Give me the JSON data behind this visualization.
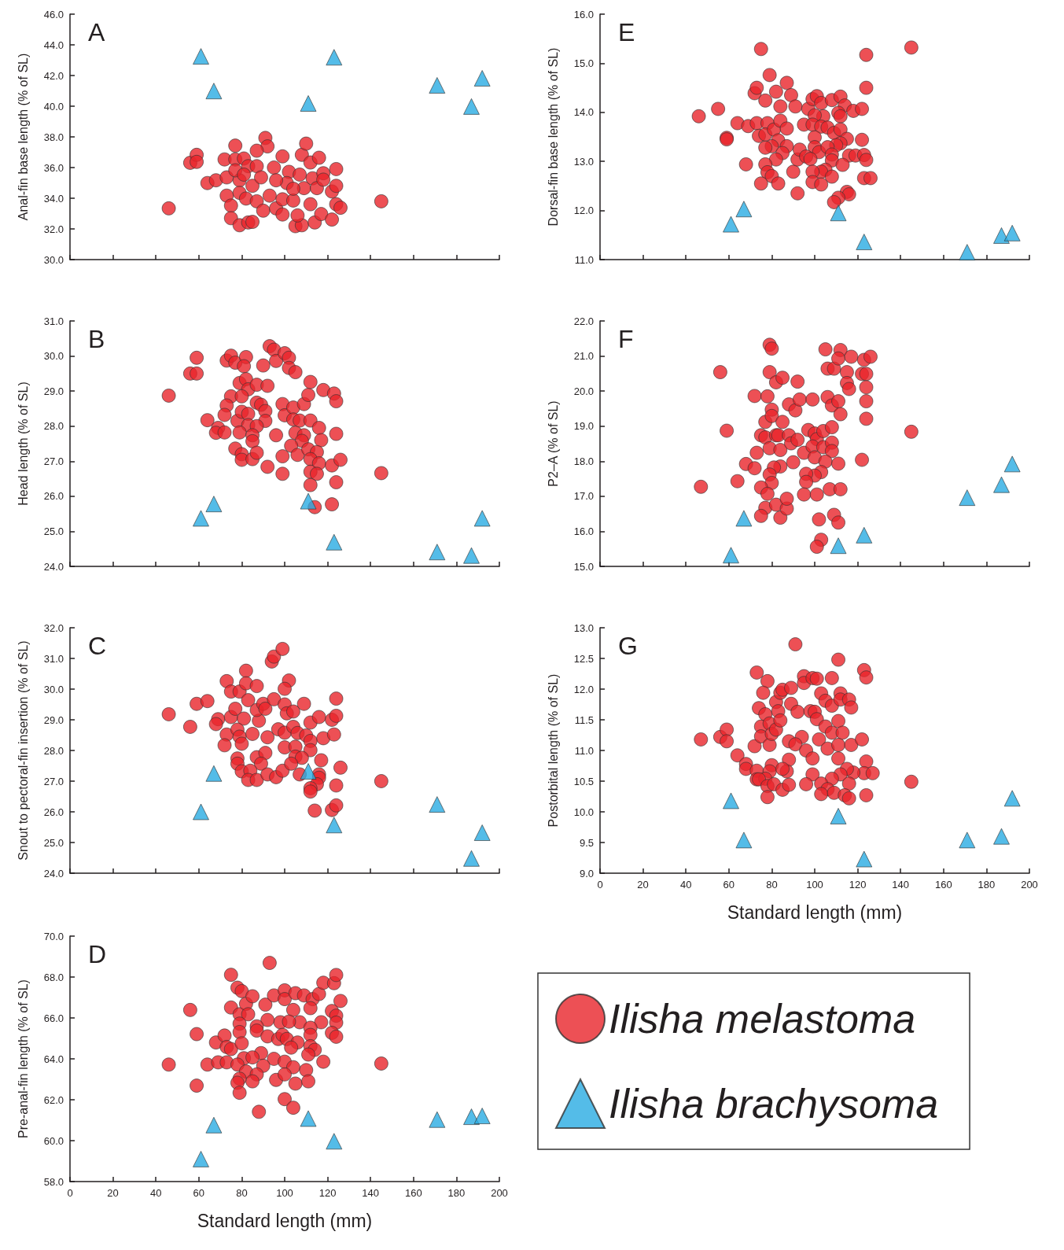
{
  "chart_data": [
    {
      "type": "scatter",
      "title": "A",
      "ylabel": "Anal-fin base length (% of SL)",
      "xlim": [
        0,
        200
      ],
      "xticks": [
        0,
        20,
        40,
        60,
        80,
        100,
        120,
        140,
        160,
        180,
        200
      ],
      "ylim": [
        30,
        46
      ],
      "yticks": [
        {
          "value": 30,
          "label": "30.0"
        },
        {
          "value": 32,
          "label": "32.0"
        },
        {
          "value": 34,
          "label": "34.0"
        },
        {
          "value": 36,
          "label": "36.0"
        },
        {
          "value": 38,
          "label": "38.0"
        },
        {
          "value": 40,
          "label": "40.0"
        },
        {
          "value": 42,
          "label": "42.0"
        },
        {
          "value": 44,
          "label": "44.0"
        },
        {
          "value": 46,
          "label": "46.0"
        }
      ],
      "tick_labels": "y",
      "series": [
        {
          "color": "#e8242b",
          "marker": "circle",
          "x": [
            46,
            56,
            59,
            59,
            64,
            68,
            72,
            77,
            77,
            81,
            73,
            73,
            75,
            75,
            79,
            83,
            85,
            79,
            79,
            82,
            83,
            87,
            85,
            87,
            90,
            89,
            91,
            92,
            87,
            95,
            93,
            96,
            99,
            99,
            99,
            102,
            101,
            104,
            105,
            108,
            106,
            108,
            110,
            112,
            109,
            112,
            113,
            116,
            115,
            114,
            117,
            118,
            118,
            122,
            122,
            124,
            124,
            124,
            126,
            145,
            77,
            81,
            96,
            107,
            104
          ],
          "values": [
            33.34,
            36.31,
            36.83,
            36.37,
            34.99,
            35.17,
            36.53,
            37.43,
            36.53,
            36.59,
            35.36,
            34.17,
            33.52,
            32.7,
            32.24,
            32.42,
            32.46,
            35.17,
            34.35,
            33.98,
            36.09,
            36.09,
            34.81,
            33.8,
            33.19,
            35.36,
            37.93,
            37.38,
            37.1,
            36.0,
            34.17,
            33.34,
            36.73,
            33.93,
            32.94,
            35.72,
            34.99,
            33.85,
            32.18,
            32.24,
            32.88,
            36.83,
            37.56,
            36.33,
            34.66,
            33.61,
            35.3,
            36.64,
            34.66,
            32.42,
            32.97,
            35.63,
            35.21,
            34.44,
            32.61,
            35.9,
            34.81,
            33.61,
            33.38,
            33.8,
            35.82,
            35.54,
            35.17,
            35.54,
            34.62
          ]
        },
        {
          "color": "#29abe2",
          "marker": "triangle",
          "x": [
            61,
            67,
            111,
            123,
            171,
            187,
            192
          ],
          "values": [
            43.25,
            40.99,
            40.18,
            43.19,
            41.36,
            39.98,
            41.82
          ]
        }
      ]
    },
    {
      "type": "scatter",
      "title": "B",
      "ylabel": "Head length (% of SL)",
      "xlim": [
        0,
        200
      ],
      "xticks": [
        0,
        20,
        40,
        60,
        80,
        100,
        120,
        140,
        160,
        180,
        200
      ],
      "ylim": [
        24,
        31
      ],
      "yticks": [
        {
          "value": 24,
          "label": "24.0"
        },
        {
          "value": 25,
          "label": "25.0"
        },
        {
          "value": 26,
          "label": "26.0"
        },
        {
          "value": 27,
          "label": "27.0"
        },
        {
          "value": 28,
          "label": "28.0"
        },
        {
          "value": 29,
          "label": "29.0"
        },
        {
          "value": 30,
          "label": "30.0"
        },
        {
          "value": 31,
          "label": "31.0"
        }
      ],
      "tick_labels": "y",
      "series": [
        {
          "color": "#e8242b",
          "marker": "circle",
          "x": [
            46,
            56,
            59,
            59,
            64,
            69,
            68,
            72,
            73,
            75,
            77,
            82,
            81,
            90,
            93,
            95,
            96,
            100,
            102,
            102,
            105,
            79,
            82,
            83,
            87,
            92,
            75,
            80,
            73,
            72,
            78,
            80,
            83,
            87,
            89,
            91,
            91,
            83,
            87,
            79,
            85,
            85,
            96,
            99,
            100,
            104,
            109,
            111,
            112,
            118,
            123,
            124,
            104,
            107,
            112,
            116,
            105,
            109,
            108,
            117,
            124,
            77,
            80,
            80,
            85,
            87,
            103,
            106,
            111,
            115,
            99,
            92,
            99,
            112,
            116,
            122,
            126,
            112,
            115,
            124,
            112,
            114,
            122,
            145
          ],
          "values": [
            28.87,
            29.5,
            29.5,
            29.95,
            28.17,
            27.95,
            27.81,
            27.82,
            29.87,
            30.01,
            29.81,
            29.97,
            29.71,
            29.73,
            30.28,
            30.18,
            29.86,
            30.08,
            29.95,
            29.66,
            29.54,
            29.23,
            29.34,
            29.05,
            29.18,
            29.15,
            28.85,
            28.85,
            28.59,
            28.32,
            28.15,
            28.41,
            28.35,
            28.67,
            28.61,
            28.43,
            28.15,
            28.03,
            28.0,
            27.82,
            27.74,
            27.57,
            27.74,
            28.63,
            28.31,
            28.53,
            28.63,
            28.89,
            29.26,
            29.03,
            28.93,
            28.71,
            28.19,
            28.16,
            28.16,
            27.95,
            27.81,
            27.74,
            27.58,
            27.6,
            27.78,
            27.36,
            27.2,
            27.04,
            27.06,
            27.24,
            27.44,
            27.18,
            27.34,
            27.26,
            27.14,
            26.84,
            26.64,
            27.06,
            26.94,
            26.88,
            27.04,
            26.7,
            26.64,
            26.4,
            26.32,
            25.69,
            25.77,
            26.66
          ]
        },
        {
          "color": "#29abe2",
          "marker": "triangle",
          "x": [
            61,
            67,
            111,
            123,
            171,
            187,
            192
          ],
          "values": [
            25.37,
            25.78,
            25.86,
            24.69,
            24.41,
            24.31,
            25.37
          ]
        }
      ]
    },
    {
      "type": "scatter",
      "title": "C",
      "ylabel": "Snout to pectoral-fin insertion (% of SL)",
      "xlim": [
        0,
        200
      ],
      "xticks": [
        0,
        20,
        40,
        60,
        80,
        100,
        120,
        140,
        160,
        180,
        200
      ],
      "ylim": [
        24,
        32
      ],
      "yticks": [
        {
          "value": 24,
          "label": "24.0"
        },
        {
          "value": 25,
          "label": "25.0"
        },
        {
          "value": 26,
          "label": "26.0"
        },
        {
          "value": 27,
          "label": "27.0"
        },
        {
          "value": 28,
          "label": "28.0"
        },
        {
          "value": 29,
          "label": "29.0"
        },
        {
          "value": 30,
          "label": "30.0"
        },
        {
          "value": 31,
          "label": "31.0"
        },
        {
          "value": 32,
          "label": "32.0"
        }
      ],
      "tick_labels": "y",
      "series": [
        {
          "color": "#e8242b",
          "marker": "circle",
          "x": [
            46,
            56,
            59,
            64,
            69,
            68,
            73,
            72,
            73,
            75,
            75,
            77,
            79,
            82,
            82,
            87,
            83,
            81,
            78,
            79,
            80,
            85,
            88,
            87,
            90,
            91,
            94,
            95,
            99,
            102,
            100,
            95,
            100,
            101,
            104,
            109,
            92,
            97,
            100,
            104,
            106,
            110,
            112,
            116,
            112,
            118,
            123,
            122,
            124,
            124,
            100,
            105,
            112,
            105,
            108,
            117,
            78,
            78,
            87,
            91,
            89,
            80,
            84,
            83,
            87,
            92,
            96,
            99,
            103,
            107,
            116,
            116,
            126,
            115,
            112,
            112,
            124,
            114,
            122,
            124,
            145
          ],
          "values": [
            29.18,
            28.77,
            29.52,
            29.61,
            29.02,
            28.86,
            28.52,
            28.17,
            30.26,
            29.92,
            29.09,
            29.36,
            29.92,
            30.6,
            30.19,
            30.1,
            29.64,
            29.04,
            28.68,
            28.45,
            28.22,
            28.54,
            28.97,
            29.32,
            29.52,
            29.36,
            30.9,
            31.06,
            31.31,
            30.28,
            30.01,
            29.67,
            29.5,
            29.21,
            29.27,
            29.52,
            28.43,
            28.69,
            28.58,
            28.77,
            28.57,
            28.49,
            28.91,
            29.09,
            28.31,
            28.4,
            28.52,
            29.0,
            29.69,
            29.13,
            28.1,
            28.12,
            28.01,
            27.8,
            27.76,
            27.68,
            27.74,
            27.57,
            27.78,
            27.92,
            27.57,
            27.32,
            27.34,
            27.04,
            27.04,
            27.22,
            27.13,
            27.34,
            27.57,
            27.22,
            27.22,
            27.11,
            27.44,
            26.9,
            26.77,
            26.66,
            26.86,
            26.04,
            26.06,
            26.21,
            27.0
          ]
        },
        {
          "color": "#29abe2",
          "marker": "triangle",
          "x": [
            61,
            67,
            111,
            123,
            171,
            187,
            192
          ],
          "values": [
            26.0,
            27.25,
            27.32,
            25.57,
            26.24,
            24.48,
            25.32
          ]
        }
      ]
    },
    {
      "type": "scatter",
      "title": "D",
      "ylabel": "Pre-anal-fin length (% of SL)",
      "xlabel": "Standard length (mm)",
      "xlim": [
        0,
        200
      ],
      "xticks": [
        0,
        20,
        40,
        60,
        80,
        100,
        120,
        140,
        160,
        180,
        200
      ],
      "ylim": [
        58,
        70
      ],
      "yticks": [
        {
          "value": 58,
          "label": "58.0"
        },
        {
          "value": 60,
          "label": "60.0"
        },
        {
          "value": 62,
          "label": "62.0"
        },
        {
          "value": 64,
          "label": "64.0"
        },
        {
          "value": 66,
          "label": "66.0"
        },
        {
          "value": 68,
          "label": "68.0"
        },
        {
          "value": 70,
          "label": "70.0"
        }
      ],
      "legend": "right",
      "series": [
        {
          "name": "Ilisha melastoma",
          "color": "#e8242b",
          "marker": "circle",
          "x": [
            46,
            56,
            59,
            59,
            64,
            69,
            68,
            72,
            73,
            73,
            75,
            75,
            78,
            80,
            75,
            79,
            82,
            83,
            85,
            91,
            95,
            93,
            100,
            100,
            105,
            109,
            113,
            116,
            118,
            123,
            124,
            126,
            104,
            112,
            122,
            124,
            124,
            122,
            124,
            117,
            107,
            112,
            112,
            98,
            102,
            92,
            87,
            87,
            79,
            79,
            80,
            92,
            97,
            99,
            101,
            106,
            103,
            112,
            114,
            111,
            89,
            81,
            85,
            78,
            95,
            100,
            104,
            90,
            118,
            82,
            87,
            85,
            79,
            78,
            79,
            96,
            100,
            110,
            105,
            111,
            100,
            104,
            88,
            145
          ],
          "values": [
            63.72,
            66.39,
            65.21,
            62.69,
            63.72,
            63.83,
            64.8,
            65.14,
            63.83,
            64.58,
            64.48,
            68.11,
            67.48,
            67.31,
            66.51,
            66.18,
            66.69,
            66.18,
            67.06,
            66.65,
            67.1,
            68.69,
            67.35,
            66.92,
            67.21,
            67.1,
            66.92,
            67.17,
            67.72,
            67.7,
            68.1,
            66.83,
            66.39,
            66.48,
            66.34,
            66.11,
            65.77,
            65.27,
            65.08,
            65.79,
            65.79,
            65.52,
            65.17,
            65.79,
            65.82,
            65.9,
            65.59,
            65.38,
            65.72,
            65.31,
            64.76,
            65.1,
            64.97,
            65.17,
            64.97,
            64.8,
            64.55,
            64.62,
            64.44,
            64.21,
            64.28,
            64.03,
            64.07,
            63.72,
            64.0,
            63.86,
            63.59,
            63.66,
            63.86,
            63.38,
            63.24,
            62.9,
            63.03,
            62.83,
            62.34,
            62.97,
            63.24,
            63.45,
            62.79,
            62.9,
            62.03,
            61.61,
            61.41,
            63.77
          ]
        },
        {
          "name": "Ilisha brachysoma",
          "color": "#29abe2",
          "marker": "triangle",
          "x": [
            61,
            67,
            111,
            123,
            171,
            187,
            192
          ],
          "values": [
            59.1,
            60.76,
            61.08,
            59.97,
            61.03,
            61.17,
            61.21
          ]
        }
      ]
    },
    {
      "type": "scatter",
      "title": "E",
      "ylabel": "Dorsal-fin base length (% of SL)",
      "xlim": [
        0,
        200
      ],
      "xticks": [
        0,
        20,
        40,
        60,
        80,
        100,
        120,
        140,
        160,
        180,
        200
      ],
      "ylim": [
        11,
        16
      ],
      "yticks": [
        {
          "value": 11,
          "label": "11.0"
        },
        {
          "value": 12,
          "label": "12.0"
        },
        {
          "value": 13,
          "label": "13.0"
        },
        {
          "value": 14,
          "label": "14.0"
        },
        {
          "value": 15,
          "label": "15.0"
        },
        {
          "value": 16,
          "label": "16.0"
        }
      ],
      "tick_labels": "y",
      "series": [
        {
          "color": "#e8242b",
          "marker": "circle",
          "x": [
            46,
            55,
            59,
            59,
            68,
            64,
            69,
            73,
            72,
            73,
            75,
            77,
            79,
            82,
            87,
            78,
            74,
            77,
            81,
            84,
            84,
            87,
            89,
            91,
            83,
            87,
            80,
            77,
            85,
            82,
            77,
            78,
            80,
            75,
            83,
            90,
            92,
            93,
            95,
            97,
            99,
            101,
            103,
            108,
            112,
            114,
            118,
            122,
            111,
            112,
            104,
            100,
            99,
            103,
            106,
            109,
            112,
            100,
            115,
            122,
            112,
            110,
            100,
            102,
            106,
            108,
            96,
            98,
            108,
            116,
            119,
            123,
            124,
            113,
            105,
            103,
            99,
            108,
            99,
            103,
            123,
            126,
            92,
            115,
            116,
            111,
            109,
            124,
            124,
            145
          ],
          "values": [
            13.92,
            14.07,
            13.48,
            13.45,
            12.94,
            13.78,
            13.72,
            13.78,
            14.39,
            14.5,
            15.29,
            14.24,
            14.76,
            14.42,
            14.6,
            13.78,
            13.52,
            13.55,
            13.65,
            14.12,
            13.83,
            13.67,
            14.35,
            14.12,
            13.43,
            13.31,
            13.31,
            13.28,
            13.17,
            13.04,
            12.94,
            12.78,
            12.7,
            12.55,
            12.55,
            12.79,
            13.04,
            13.24,
            13.75,
            14.07,
            14.27,
            14.33,
            14.19,
            14.25,
            14.32,
            14.14,
            14.03,
            14.07,
            13.99,
            13.92,
            13.92,
            13.94,
            13.75,
            13.71,
            13.69,
            13.58,
            13.65,
            13.49,
            13.46,
            13.44,
            13.37,
            13.33,
            13.29,
            13.19,
            13.29,
            13.14,
            13.1,
            13.05,
            13.02,
            13.12,
            13.12,
            13.13,
            13.03,
            12.93,
            12.83,
            12.79,
            12.79,
            12.69,
            12.58,
            12.53,
            12.66,
            12.66,
            12.35,
            12.38,
            12.33,
            12.26,
            12.17,
            14.5,
            15.17,
            15.32
          ]
        },
        {
          "color": "#29abe2",
          "marker": "triangle",
          "x": [
            61,
            67,
            111,
            123,
            171,
            187,
            192
          ],
          "values": [
            11.72,
            12.03,
            11.95,
            11.36,
            11.15,
            11.49,
            11.54
          ]
        }
      ]
    },
    {
      "type": "scatter",
      "title": "F",
      "ylabel": "P2–A (% of SL)",
      "xlim": [
        0,
        200
      ],
      "xticks": [
        0,
        20,
        40,
        60,
        80,
        100,
        120,
        140,
        160,
        180,
        200
      ],
      "ylim": [
        15,
        22
      ],
      "yticks": [
        {
          "value": 15,
          "label": "15.0"
        },
        {
          "value": 16,
          "label": "16.0"
        },
        {
          "value": 17,
          "label": "17.0"
        },
        {
          "value": 18,
          "label": "18.0"
        },
        {
          "value": 19,
          "label": "19.0"
        },
        {
          "value": 20,
          "label": "20.0"
        },
        {
          "value": 21,
          "label": "21.0"
        },
        {
          "value": 22,
          "label": "22.0"
        }
      ],
      "tick_labels": "y",
      "series": [
        {
          "color": "#e8242b",
          "marker": "circle",
          "x": [
            47,
            56,
            59,
            64,
            68,
            72,
            72,
            73,
            75,
            77,
            77,
            78,
            79,
            80,
            79,
            82,
            85,
            80,
            80,
            85,
            79,
            82,
            83,
            84,
            88,
            91,
            92,
            93,
            99,
            88,
            89,
            92,
            90,
            84,
            81,
            79,
            80,
            75,
            78,
            77,
            75,
            82,
            84,
            87,
            87,
            95,
            97,
            100,
            101,
            99,
            100,
            104,
            104,
            108,
            108,
            108,
            105,
            103,
            100,
            96,
            96,
            95,
            101,
            107,
            112,
            111,
            122,
            109,
            111,
            102,
            103,
            101,
            106,
            108,
            111,
            112,
            106,
            109,
            115,
            115,
            116,
            105,
            112,
            111,
            117,
            123,
            126,
            122,
            124,
            124,
            124,
            124,
            145
          ],
          "values": [
            17.27,
            20.54,
            18.87,
            17.43,
            17.92,
            17.8,
            19.86,
            18.24,
            18.74,
            18.68,
            19.12,
            19.85,
            21.32,
            21.21,
            20.54,
            20.25,
            20.38,
            19.47,
            19.29,
            19.12,
            18.37,
            18.74,
            18.74,
            18.32,
            19.62,
            19.45,
            20.27,
            19.76,
            19.76,
            18.74,
            18.51,
            18.61,
            17.97,
            17.85,
            17.82,
            17.62,
            17.38,
            17.25,
            17.07,
            16.67,
            16.44,
            16.76,
            16.39,
            16.65,
            16.93,
            18.24,
            18.89,
            18.79,
            18.63,
            18.42,
            18.11,
            18.86,
            18.4,
            18.97,
            18.53,
            18.29,
            17.99,
            17.69,
            17.59,
            17.64,
            17.41,
            17.05,
            17.05,
            17.2,
            17.2,
            17.93,
            18.04,
            16.47,
            16.25,
            16.34,
            15.76,
            15.56,
            19.83,
            19.59,
            19.71,
            19.34,
            20.64,
            20.64,
            20.54,
            20.23,
            20.06,
            21.19,
            21.17,
            20.93,
            20.98,
            20.89,
            20.98,
            20.49,
            20.49,
            20.11,
            19.71,
            19.21,
            18.84
          ]
        },
        {
          "color": "#29abe2",
          "marker": "triangle",
          "x": [
            61,
            67,
            111,
            123,
            171,
            187,
            192
          ],
          "values": [
            15.32,
            16.37,
            15.59,
            15.89,
            16.96,
            17.33,
            17.92
          ]
        }
      ]
    },
    {
      "type": "scatter",
      "title": "G",
      "ylabel": "Postorbital length (% of SL)",
      "xlabel": "Standard length (mm)",
      "xlim": [
        0,
        200
      ],
      "xticks": [
        0,
        20,
        40,
        60,
        80,
        100,
        120,
        140,
        160,
        180,
        200
      ],
      "ylim": [
        9,
        13
      ],
      "yticks": [
        {
          "value": 9,
          "label": "9.0"
        },
        9.5,
        {
          "value": 10,
          "label": "10.0"
        },
        10.5,
        {
          "value": 11,
          "label": "11.0"
        },
        11.5,
        {
          "value": 12,
          "label": "12.0"
        },
        12.5,
        {
          "value": 13,
          "label": "13.0"
        }
      ],
      "series": [
        {
          "color": "#e8242b",
          "marker": "circle",
          "x": [
            47,
            56,
            59,
            59,
            64,
            68,
            68,
            73,
            73,
            72,
            73,
            78,
            76,
            74,
            75,
            75,
            77,
            79,
            79,
            80,
            82,
            82,
            83,
            84,
            84,
            85,
            89,
            89,
            92,
            91,
            88,
            94,
            91,
            88,
            80,
            79,
            77,
            74,
            78,
            78,
            81,
            85,
            88,
            87,
            85,
            96,
            99,
            99,
            96,
            95,
            95,
            99,
            101,
            103,
            105,
            108,
            108,
            111,
            112,
            112,
            116,
            117,
            98,
            100,
            101,
            105,
            108,
            111,
            113,
            102,
            106,
            111,
            111,
            117,
            122,
            124,
            123,
            127,
            118,
            115,
            112,
            108,
            103,
            116,
            106,
            103,
            109,
            114,
            116,
            124,
            123,
            124,
            145
          ],
          "values": [
            11.18,
            11.22,
            11.34,
            11.15,
            10.92,
            10.78,
            10.7,
            10.67,
            10.53,
            11.07,
            12.27,
            12.13,
            11.94,
            11.69,
            11.39,
            11.23,
            11.59,
            11.44,
            11.09,
            11.27,
            11.79,
            11.34,
            11.64,
            11.49,
            11.94,
            11.99,
            12.02,
            11.76,
            11.63,
            12.73,
            11.15,
            11.22,
            11.1,
            10.85,
            10.76,
            10.66,
            10.54,
            10.53,
            10.42,
            10.24,
            10.45,
            10.36,
            10.44,
            10.66,
            10.7,
            11.0,
            10.87,
            10.61,
            10.45,
            12.21,
            12.1,
            12.18,
            12.17,
            11.93,
            11.81,
            11.73,
            12.18,
            12.48,
            11.93,
            11.83,
            11.83,
            11.7,
            11.64,
            11.63,
            11.51,
            11.39,
            11.29,
            11.48,
            11.29,
            11.18,
            11.03,
            11.09,
            10.87,
            11.09,
            11.18,
            10.82,
            10.63,
            10.63,
            10.64,
            10.7,
            10.61,
            10.54,
            10.46,
            10.46,
            10.37,
            10.29,
            10.31,
            10.27,
            10.22,
            10.27,
            12.31,
            12.19,
            10.49
          ]
        },
        {
          "color": "#29abe2",
          "marker": "triangle",
          "x": [
            61,
            67,
            111,
            123,
            171,
            187,
            192
          ],
          "values": [
            10.18,
            9.54,
            9.93,
            9.23,
            9.54,
            9.6,
            10.22
          ]
        }
      ]
    }
  ]
}
